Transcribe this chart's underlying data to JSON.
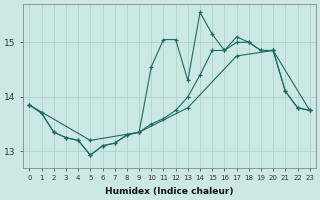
{
  "xlabel": "Humidex (Indice chaleur)",
  "ylabel": "",
  "xlim": [
    -0.5,
    23.5
  ],
  "ylim": [
    12.7,
    15.7
  ],
  "yticks": [
    13,
    14,
    15
  ],
  "xticks": [
    0,
    1,
    2,
    3,
    4,
    5,
    6,
    7,
    8,
    9,
    10,
    11,
    12,
    13,
    14,
    15,
    16,
    17,
    18,
    19,
    20,
    21,
    22,
    23
  ],
  "background_color": "#cce8e4",
  "grid_color": "#aacfcb",
  "line_color": "#1a6b62",
  "line1_x": [
    0,
    1,
    2,
    3,
    4,
    5,
    6,
    7,
    8,
    9,
    10,
    11,
    12,
    13,
    14,
    15,
    16,
    17,
    18,
    19,
    20,
    21,
    22,
    23
  ],
  "line1_y": [
    13.85,
    13.7,
    13.35,
    13.25,
    13.2,
    12.93,
    13.1,
    13.15,
    13.3,
    13.35,
    14.55,
    15.05,
    15.05,
    14.3,
    15.55,
    15.15,
    14.85,
    15.1,
    15.0,
    14.85,
    14.85,
    14.1,
    13.8,
    13.75
  ],
  "line2_x": [
    0,
    1,
    2,
    3,
    4,
    5,
    6,
    7,
    8,
    9,
    10,
    11,
    12,
    13,
    14,
    15,
    16,
    17,
    18,
    19,
    20,
    21,
    22,
    23
  ],
  "line2_y": [
    13.85,
    13.7,
    13.35,
    13.25,
    13.2,
    12.93,
    13.1,
    13.15,
    13.3,
    13.35,
    13.5,
    13.6,
    13.75,
    14.0,
    14.4,
    14.85,
    14.85,
    15.0,
    15.0,
    14.85,
    14.85,
    14.1,
    13.8,
    13.75
  ],
  "line3_x": [
    0,
    5,
    9,
    13,
    17,
    20,
    23
  ],
  "line3_y": [
    13.85,
    13.2,
    13.35,
    13.8,
    14.75,
    14.85,
    13.75
  ]
}
